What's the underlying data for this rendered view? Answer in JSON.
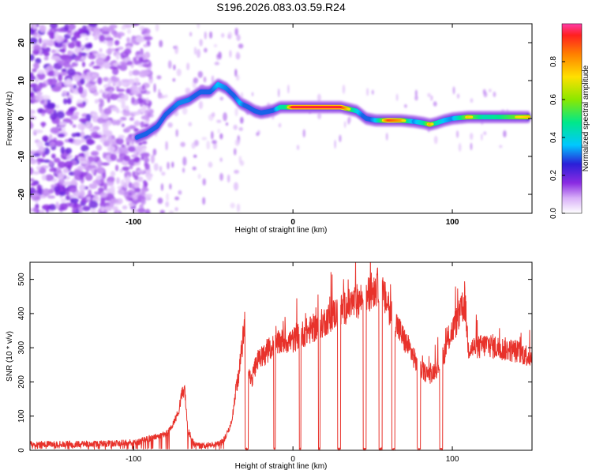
{
  "figure_title": "S196.2026.083.03.59.R24",
  "chart_data": [
    {
      "id": "spectrogram",
      "type": "heatmap",
      "title": "",
      "xlabel": "Height of straight line (km)",
      "ylabel": "Frequency (Hz)",
      "xlim": [
        -165,
        150
      ],
      "ylim": [
        -25,
        25
      ],
      "xticks": [
        -100,
        0,
        100
      ],
      "xtick_labels": [
        "-100",
        "0",
        "100"
      ],
      "yticks": [
        -20,
        -10,
        0,
        10,
        20
      ],
      "ytick_labels": [
        "-20",
        "-10",
        "0",
        "10",
        "20"
      ],
      "colorbar": {
        "label": "Normalized spectral amplitude",
        "range": [
          0,
          1
        ],
        "ticks": [
          0.0,
          0.2,
          0.4,
          0.6,
          0.8
        ],
        "tick_labels": [
          "0.0",
          "0.2",
          "0.4",
          "0.6",
          "0.8"
        ],
        "colormap": "rainbow"
      },
      "ridge": {
        "x": [
          -98,
          -92,
          -85,
          -80,
          -72,
          -65,
          -58,
          -52,
          -47,
          -42,
          -37,
          -33,
          -28,
          -24,
          -20,
          -16,
          -12,
          -8,
          -4,
          0,
          10,
          20,
          30,
          40,
          46,
          52,
          60,
          68,
          76,
          82,
          86,
          90,
          95,
          100,
          110,
          120,
          130,
          140,
          148
        ],
        "freq": [
          -5,
          -4,
          -2,
          1,
          4,
          5,
          7,
          7,
          9,
          8,
          6,
          4,
          3,
          2,
          1.5,
          1.8,
          2.2,
          3,
          3,
          3,
          3,
          3,
          3,
          2,
          0,
          -0.5,
          -0.5,
          -0.5,
          -0.8,
          -1.2,
          -1.6,
          -1.2,
          -0.5,
          0,
          0.4,
          0.4,
          0.4,
          0.4,
          0.4
        ],
        "amplitude": [
          0.35,
          0.3,
          0.35,
          0.35,
          0.4,
          0.4,
          0.3,
          0.35,
          0.45,
          0.4,
          0.35,
          0.45,
          0.3,
          0.35,
          0.35,
          0.35,
          0.35,
          0.55,
          0.6,
          0.95,
          0.95,
          0.95,
          0.95,
          0.5,
          0.3,
          0.45,
          0.9,
          0.8,
          0.4,
          0.55,
          0.8,
          0.55,
          0.45,
          0.4,
          0.75,
          0.55,
          0.6,
          0.7,
          0.75
        ]
      }
    },
    {
      "id": "snr",
      "type": "line",
      "title": "",
      "xlabel": "Height of straight line (km)",
      "ylabel": "SNR (10 * v/v)",
      "xlim": [
        -165,
        150
      ],
      "ylim": [
        0,
        550
      ],
      "xticks": [
        -100,
        0,
        100
      ],
      "xtick_labels": [
        "-100",
        "0",
        "100"
      ],
      "yticks": [
        0,
        100,
        200,
        300,
        400,
        500
      ],
      "ytick_labels": [
        "0",
        "100",
        "200",
        "300",
        "400",
        "500"
      ],
      "series": [
        {
          "name": "SNR",
          "color": "#e8322b",
          "x": [
            -165,
            -140,
            -110,
            -96,
            -90,
            -86,
            -80,
            -76,
            -72,
            -70,
            -68,
            -66,
            -62,
            -58,
            -50,
            -44,
            -40,
            -38,
            -36,
            -34,
            -32,
            -30,
            -28,
            -26,
            -24,
            -22,
            -18,
            -14,
            -10,
            -6,
            -2,
            0,
            2,
            6,
            10,
            14,
            18,
            22,
            26,
            30,
            34,
            38,
            42,
            46,
            50,
            54,
            58,
            62,
            66,
            70,
            74,
            78,
            82,
            86,
            90,
            94,
            98,
            102,
            106,
            108,
            110,
            116,
            122,
            128,
            134,
            140,
            146,
            150
          ],
          "y": [
            18,
            18,
            20,
            25,
            35,
            40,
            45,
            70,
            110,
            160,
            180,
            60,
            20,
            12,
            15,
            25,
            60,
            100,
            170,
            220,
            300,
            380,
            230,
            200,
            240,
            260,
            280,
            300,
            310,
            320,
            320,
            320,
            330,
            340,
            350,
            360,
            370,
            385,
            400,
            410,
            420,
            430,
            440,
            450,
            470,
            480,
            440,
            400,
            360,
            320,
            290,
            250,
            230,
            220,
            240,
            270,
            330,
            370,
            410,
            430,
            300,
            300,
            310,
            300,
            295,
            290,
            280,
            270
          ]
        }
      ],
      "gap_segments_x": [
        [
          -30,
          -28
        ],
        [
          -12,
          -11
        ],
        [
          4,
          5
        ],
        [
          16,
          17
        ],
        [
          28,
          30
        ],
        [
          44,
          46
        ],
        [
          54,
          56
        ],
        [
          62,
          64
        ],
        [
          78,
          80
        ],
        [
          92,
          94
        ]
      ]
    }
  ],
  "colors": {
    "series_line": "#e8322b",
    "noise": "#8a4fd8",
    "axis": "#000000"
  }
}
